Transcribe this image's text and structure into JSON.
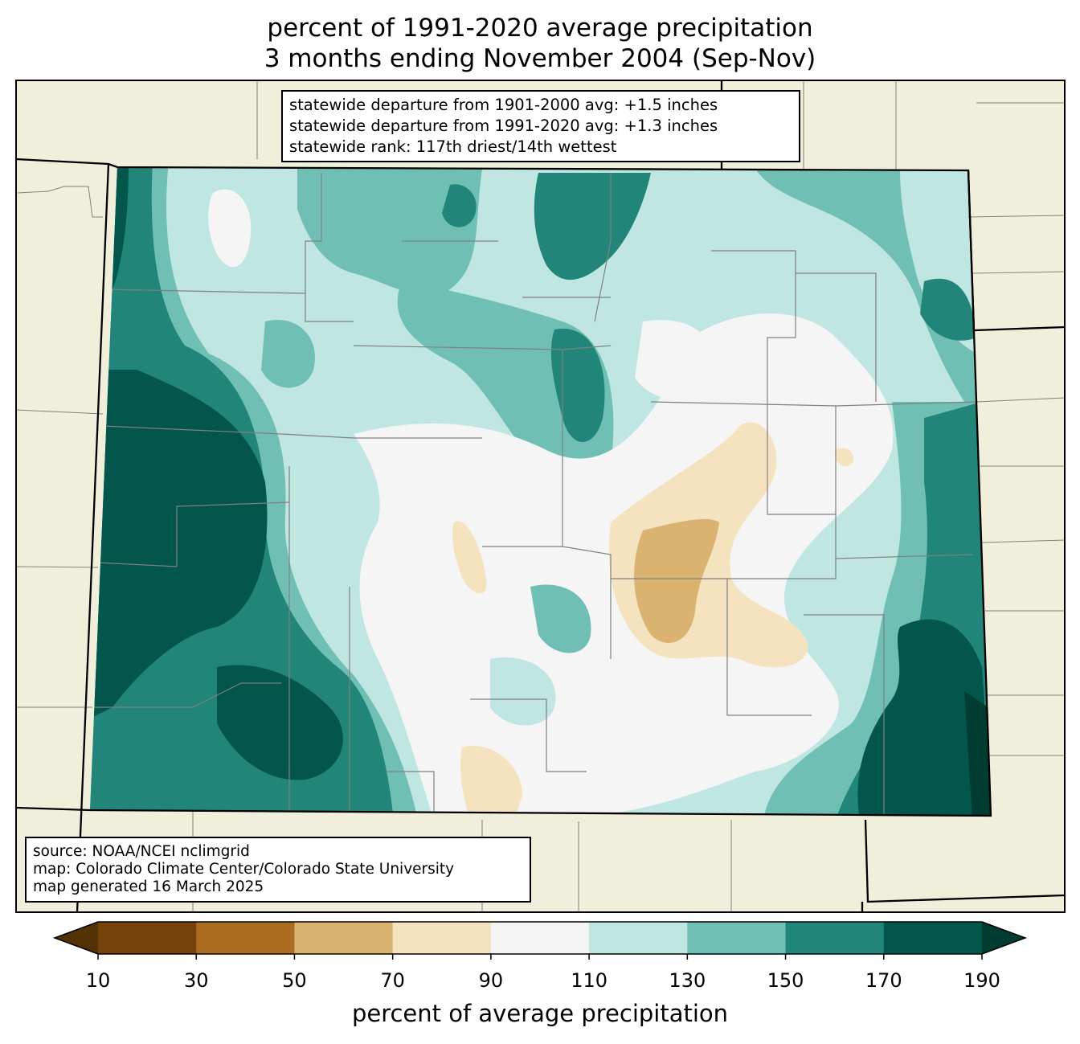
{
  "title_line1": "percent of 1991-2020 average precipitation",
  "title_line2": "3 months ending November 2004 (Sep-Nov)",
  "stats": {
    "line1": "statewide departure from 1901-2000 avg: +1.5 inches",
    "line2": "statewide departure from 1991-2020 avg: +1.3 inches",
    "line3": "statewide rank: 117th driest/14th wettest"
  },
  "source": {
    "line1": "source: NOAA/NCEI nclimgrid",
    "line2": "map: Colorado Climate Center/Colorado State University",
    "line3": "map generated 16 March 2025"
  },
  "colorbar": {
    "label": "percent of average precipitation",
    "ticks": [
      "10",
      "30",
      "50",
      "70",
      "90",
      "110",
      "130",
      "150",
      "170",
      "190"
    ],
    "under_color": "#543005",
    "over_color": "#003c30",
    "colors": [
      "#74420a",
      "#ab6c22",
      "#d9b36f",
      "#f4e3be",
      "#f4f5f4",
      "#bfe6e1",
      "#6fbfb4",
      "#218579",
      "#02564c"
    ]
  },
  "map_colors": {
    "background_land": "#f0efdc",
    "state_border": "#000000",
    "county_lines": "#808080"
  }
}
